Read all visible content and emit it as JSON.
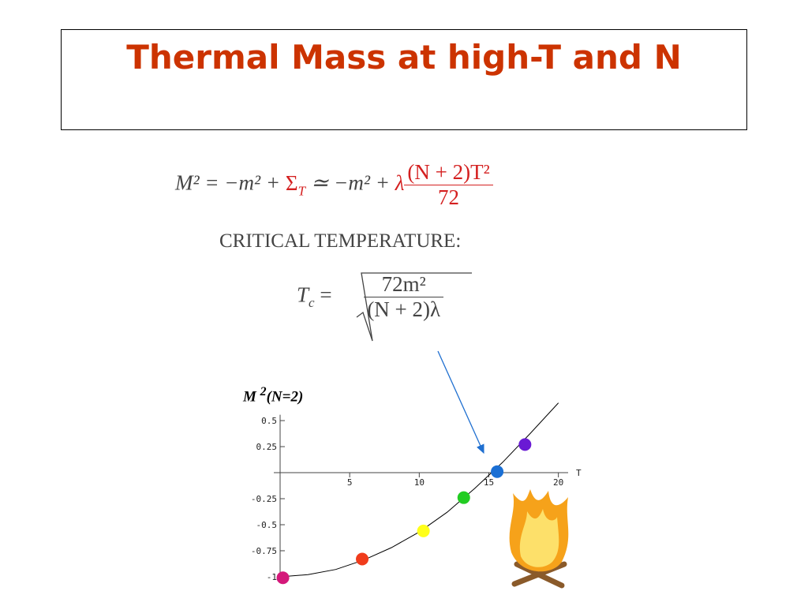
{
  "title": "Thermal Mass at high-T and N",
  "equation1": {
    "lhs": "M² = −m² + ",
    "sigma": "Σ",
    "sigma_sub": "T",
    "mid": " ≃ −m² + ",
    "lambda": "λ",
    "numerator": "(N + 2)T²",
    "denominator": "72"
  },
  "critical_label": "CRITICAL TEMPERATURE:",
  "equation2": {
    "lhs": "T",
    "lhs_sub": "c",
    "eq": " = ",
    "numerator": "72m²",
    "denominator": "(N + 2)λ"
  },
  "chart_data": {
    "type": "line",
    "ylabel": {
      "base": "M ",
      "sup": "2",
      "rest": "(N=2)"
    },
    "xlabel": "T",
    "x": [
      0,
      2,
      4,
      6,
      8,
      10,
      12,
      14,
      16,
      18,
      20
    ],
    "values": [
      -1,
      -0.98,
      -0.93,
      -0.84,
      -0.72,
      -0.57,
      -0.38,
      -0.15,
      0.1,
      0.38,
      0.67
    ],
    "color": "#000000",
    "points": {
      "x": [
        0.2,
        5.9,
        10.3,
        13.2,
        15.6,
        17.6
      ],
      "values": [
        -1.01,
        -0.83,
        -0.56,
        -0.24,
        0.01,
        0.27
      ],
      "colors": [
        "#d4187a",
        "#f03c1c",
        "#ffff1a",
        "#22cc22",
        "#1a6fd4",
        "#6a1ad4"
      ]
    },
    "xlim": [
      0,
      20.7
    ],
    "ylim": [
      -1.02,
      0.67
    ],
    "xticks": [
      5,
      10,
      15,
      20
    ],
    "yticks": [
      0.5,
      0.25,
      -0.25,
      -0.5,
      -0.75,
      -1
    ]
  }
}
